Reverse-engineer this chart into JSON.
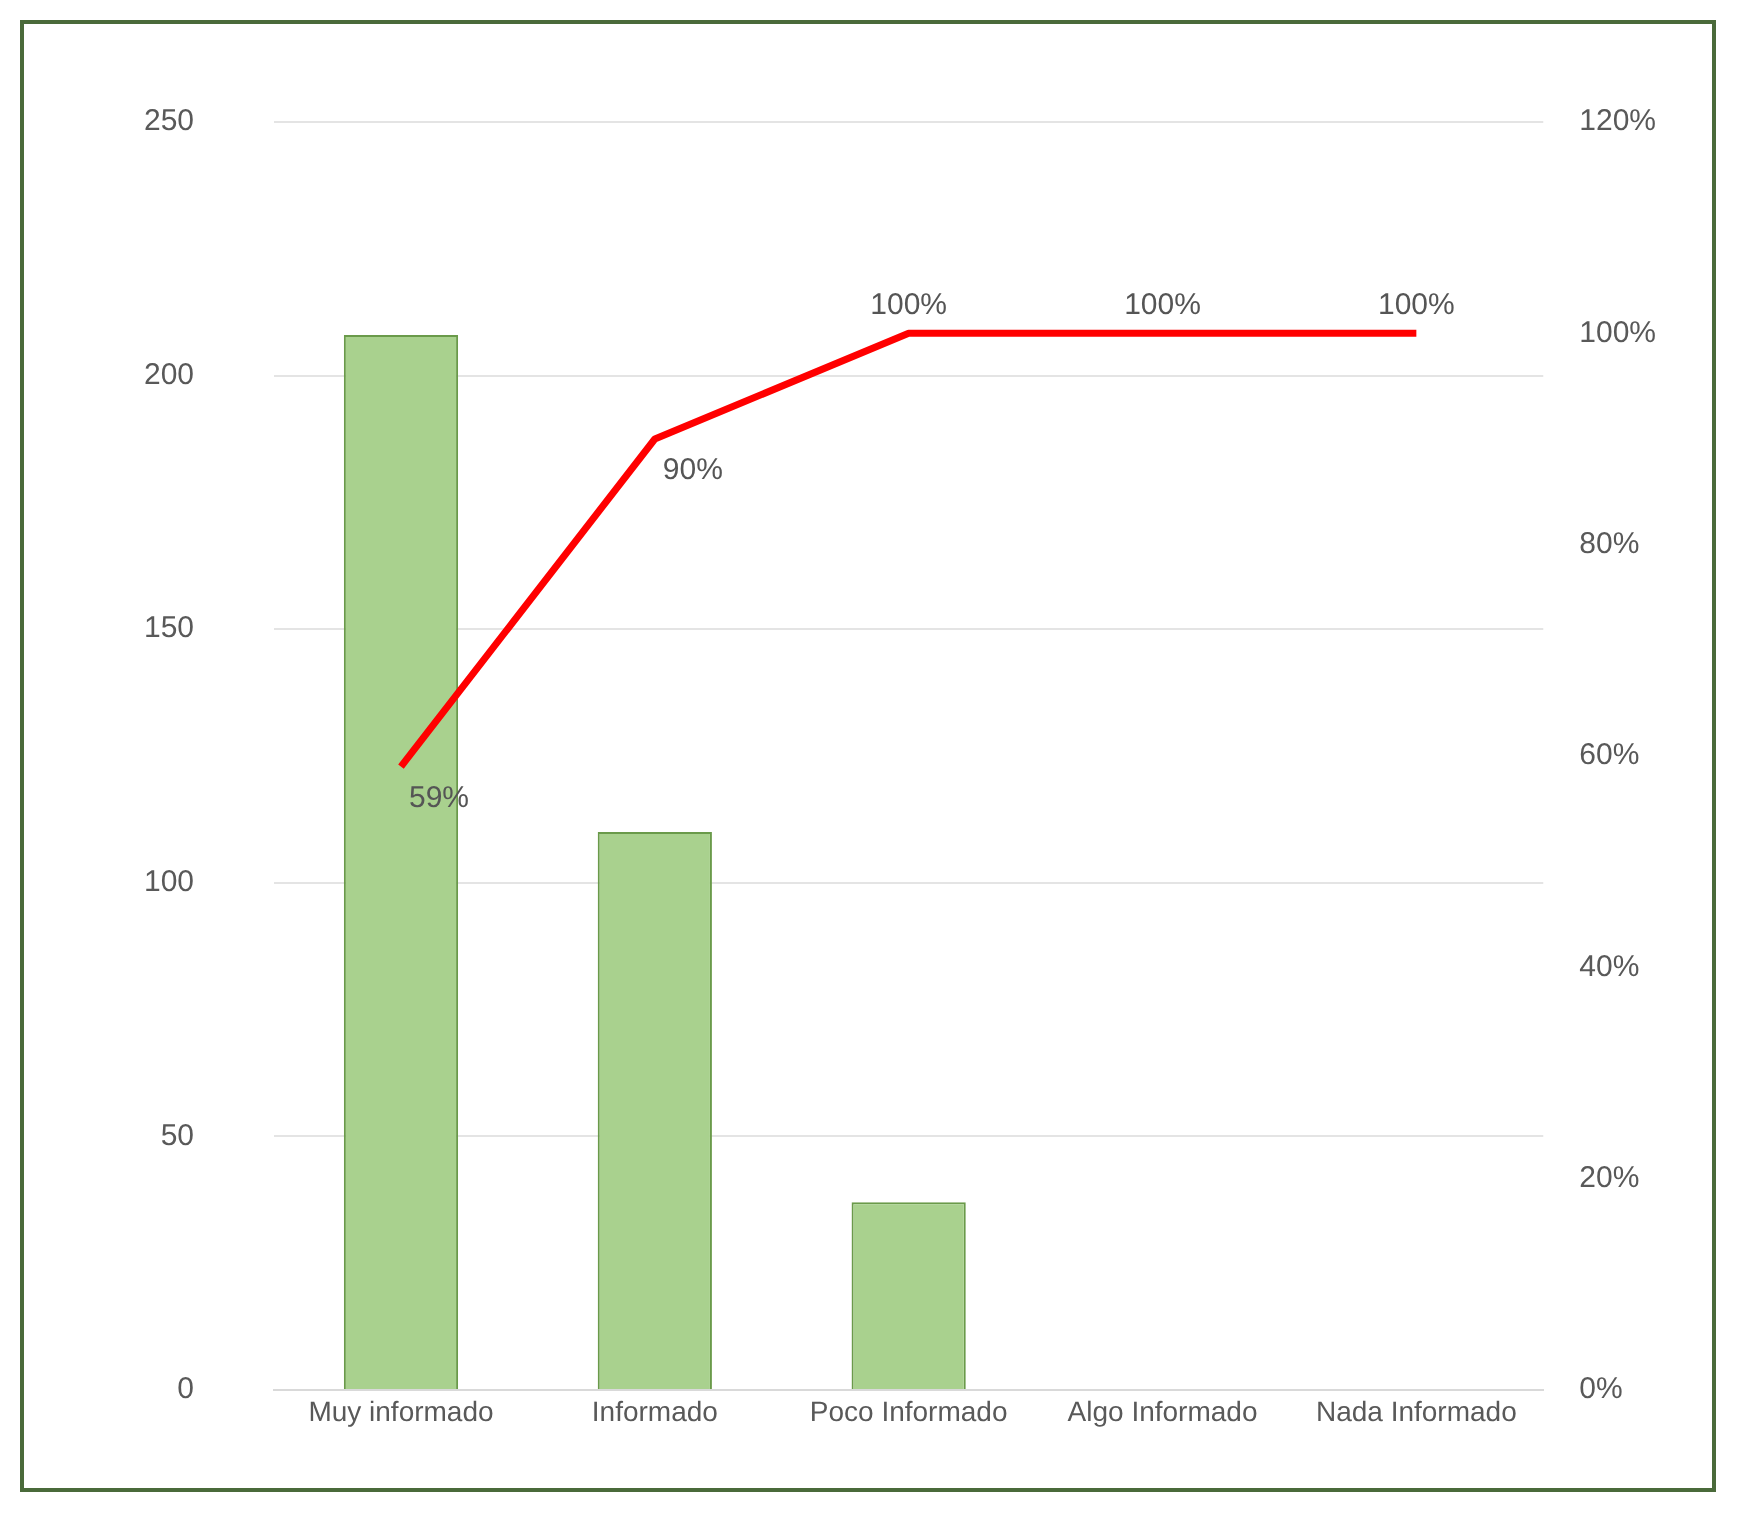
{
  "chart_data": {
    "type": "bar",
    "categories": [
      "Muy informado",
      "Informado",
      "Poco Informado",
      "Algo Informado",
      "Nada Informado"
    ],
    "series": [
      {
        "color": "#a9d18e",
        "values": [
          208,
          110,
          37,
          0,
          0
        ]
      },
      {
        "type": "line",
        "axis": "y2",
        "color": "#ff0000",
        "values": [
          59,
          90,
          100,
          100,
          100
        ],
        "value_labels": [
          "59%",
          "90%",
          "100%",
          "100%",
          "100%"
        ]
      }
    ],
    "ylim": [
      0,
      250
    ],
    "yticks": [
      0,
      50,
      100,
      150,
      200,
      250
    ],
    "y2lim": [
      0,
      120
    ],
    "y2ticks": [
      {
        "value": 0,
        "label": "0%"
      },
      {
        "value": 20,
        "label": "20%"
      },
      {
        "value": 40,
        "label": "40%"
      },
      {
        "value": 60,
        "label": "60%"
      },
      {
        "value": 80,
        "label": "80%"
      },
      {
        "value": 100,
        "label": "100%"
      },
      {
        "value": 120,
        "label": "120%"
      }
    ],
    "grid": "y",
    "legend": false,
    "marker": "none"
  }
}
